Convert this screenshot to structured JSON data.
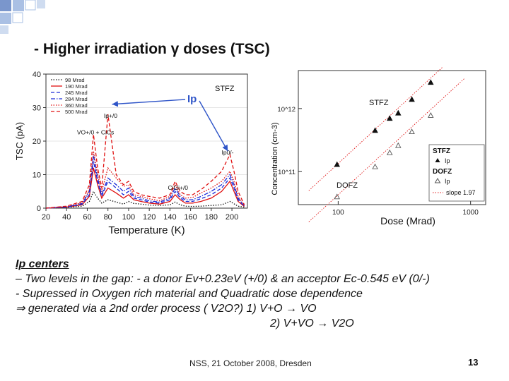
{
  "slide": {
    "title": "- Higher irradiation γ doses (TSC)",
    "footer": "NSS, 21 October 2008, Dresden",
    "page_number": "13"
  },
  "body": {
    "heading": "Ip centers",
    "line1": "– Two levels in the gap: - a donor Ev+0.23eV (+/0) & an acceptor Ec-0.545 eV (0/-)",
    "line2": "- Supressed in Oxygen rich material and Quadratic dose dependence",
    "line3": "⇒ generated via a 2nd order process ( V2O?) 1) V+O → VO",
    "line4": "2) V+VO → V2O"
  },
  "colors": {
    "red": "#e01010",
    "blue": "#1a2ad8",
    "black": "#111111",
    "grid": "#cccccc",
    "arrow": "#2f55c8",
    "deco_blue": "#7a96cc"
  },
  "chart_data": [
    {
      "type": "line",
      "xlabel": "Temperature (K)",
      "ylabel": "TSC (pA)",
      "xlim": [
        20,
        215
      ],
      "ylim": [
        0,
        40
      ],
      "xticks": [
        20,
        40,
        60,
        80,
        100,
        120,
        140,
        160,
        180,
        200
      ],
      "yticks": [
        0,
        10,
        20,
        30,
        40
      ],
      "legend_position": "top-left",
      "stfz_label": "STFZ",
      "ip_label": "Ip",
      "annotations": [
        "VO+/0 + CiCs",
        "Ip+/0",
        "CiOi+/0",
        "Ip0/-"
      ],
      "series": [
        {
          "name": "98 Mrad",
          "style": "dot",
          "color": "#111111",
          "x": [
            20,
            40,
            55,
            62,
            66,
            70,
            74,
            80,
            88,
            95,
            100,
            105,
            112,
            120,
            130,
            140,
            145,
            150,
            155,
            162,
            170,
            180,
            190,
            198,
            202,
            206,
            212
          ],
          "y": [
            0,
            0.2,
            0.6,
            2,
            5,
            3,
            1.5,
            2.5,
            1.8,
            1.2,
            2,
            1.4,
            1.2,
            0.9,
            0.8,
            1,
            1.8,
            1,
            0.6,
            0.5,
            0.6,
            0.8,
            1,
            2,
            1.3,
            0.6,
            0.3
          ]
        },
        {
          "name": "190 Mrad",
          "style": "solid",
          "color": "#e01010",
          "x": [
            20,
            40,
            55,
            62,
            66,
            70,
            74,
            80,
            88,
            95,
            100,
            105,
            112,
            120,
            130,
            140,
            145,
            150,
            155,
            162,
            170,
            180,
            190,
            198,
            202,
            206,
            212
          ],
          "y": [
            0,
            0.3,
            1,
            3.5,
            12,
            7,
            3,
            6,
            4.5,
            3,
            4,
            2.5,
            2,
            1.5,
            1.2,
            2,
            4,
            2.5,
            1.5,
            1.5,
            2,
            3,
            5,
            8,
            5,
            2,
            0.5
          ]
        },
        {
          "name": "245 Mrad",
          "style": "dash",
          "color": "#1a2ad8",
          "x": [
            20,
            40,
            55,
            62,
            66,
            70,
            74,
            80,
            88,
            95,
            100,
            105,
            112,
            120,
            130,
            140,
            145,
            150,
            155,
            162,
            170,
            180,
            190,
            198,
            202,
            206,
            212
          ],
          "y": [
            0,
            0.3,
            1.2,
            4,
            14,
            8,
            3.5,
            8,
            6,
            4,
            5,
            3,
            2.5,
            1.8,
            1.5,
            2.5,
            5,
            3,
            2,
            2,
            2.8,
            4,
            6,
            9,
            6,
            2.5,
            0.6
          ]
        },
        {
          "name": "284 Mrad",
          "style": "dashdot",
          "color": "#1a2ad8",
          "x": [
            20,
            40,
            55,
            62,
            66,
            70,
            74,
            80,
            88,
            95,
            100,
            105,
            112,
            120,
            130,
            140,
            145,
            150,
            155,
            162,
            170,
            180,
            190,
            198,
            202,
            206,
            212
          ],
          "y": [
            0,
            0.4,
            1.4,
            5,
            16,
            9,
            4,
            9,
            7,
            5,
            6,
            3.5,
            3,
            2.2,
            1.8,
            3,
            6,
            3.5,
            2.5,
            2.5,
            3.5,
            5,
            7,
            10,
            7,
            3,
            0.7
          ]
        },
        {
          "name": "360 Mrad",
          "style": "dot",
          "color": "#e01010",
          "x": [
            20,
            40,
            55,
            62,
            66,
            70,
            74,
            80,
            88,
            95,
            100,
            105,
            112,
            120,
            130,
            140,
            145,
            150,
            155,
            162,
            170,
            180,
            190,
            198,
            202,
            206,
            212
          ],
          "y": [
            0,
            0.5,
            1.6,
            5.5,
            17,
            10,
            5,
            12,
            9,
            6.5,
            7,
            4,
            3.5,
            2.8,
            2.2,
            3.5,
            7,
            4,
            3,
            3.2,
            4.5,
            6,
            8,
            11,
            8,
            3.5,
            0.8
          ]
        },
        {
          "name": "500 Mrad",
          "style": "dash",
          "color": "#e01010",
          "x": [
            20,
            40,
            55,
            62,
            66,
            70,
            74,
            80,
            88,
            95,
            100,
            105,
            112,
            120,
            130,
            140,
            145,
            150,
            155,
            162,
            170,
            180,
            190,
            198,
            202,
            206,
            212
          ],
          "y": [
            0,
            0.6,
            2,
            7,
            22,
            12,
            6,
            28,
            10,
            7,
            8,
            5,
            4,
            3.5,
            3,
            4,
            8,
            5,
            4,
            4,
            5.5,
            8,
            11,
            16,
            11,
            5,
            1
          ]
        }
      ]
    },
    {
      "type": "scatter",
      "xlabel": "Dose (Mrad)",
      "ylabel": "Concentration (cm-3)",
      "xscale": "log",
      "yscale": "log",
      "xlim": [
        50,
        1300
      ],
      "ylim": [
        30000000000.0,
        4000000000000.0
      ],
      "xtick_labels": [
        "100",
        "1000"
      ],
      "ytick_labels": [
        "10^11",
        "10^12"
      ],
      "stfz_label": "STFZ",
      "dofz_label": "DOFZ",
      "legend_position": "bottom-right",
      "legend": {
        "group1": "STFZ",
        "item1": "Ip",
        "group2": "DOFZ",
        "item2": "Ip",
        "fit": "slope 1.97"
      },
      "series": [
        {
          "name": "STFZ Ip",
          "marker": "triangle",
          "color": "#111111",
          "x": [
            98,
            190,
            245,
            284,
            360,
            500
          ],
          "y": [
            130000000000.0,
            450000000000.0,
            700000000000.0,
            850000000000.0,
            1400000000000.0,
            2600000000000.0
          ]
        },
        {
          "name": "DOFZ Ip",
          "marker": "open-triangle",
          "color": "#555555",
          "x": [
            98,
            190,
            245,
            284,
            360,
            500
          ],
          "y": [
            40000000000.0,
            120000000000.0,
            200000000000.0,
            260000000000.0,
            430000000000.0,
            780000000000.0
          ]
        }
      ],
      "fits": [
        {
          "name": "STFZ fit",
          "x": [
            60,
            900
          ],
          "y": [
            50000000000.0,
            9500000000000.0
          ]
        },
        {
          "name": "DOFZ fit",
          "x": [
            60,
            900
          ],
          "y": [
            16000000000.0,
            3000000000000.0
          ]
        }
      ]
    }
  ]
}
